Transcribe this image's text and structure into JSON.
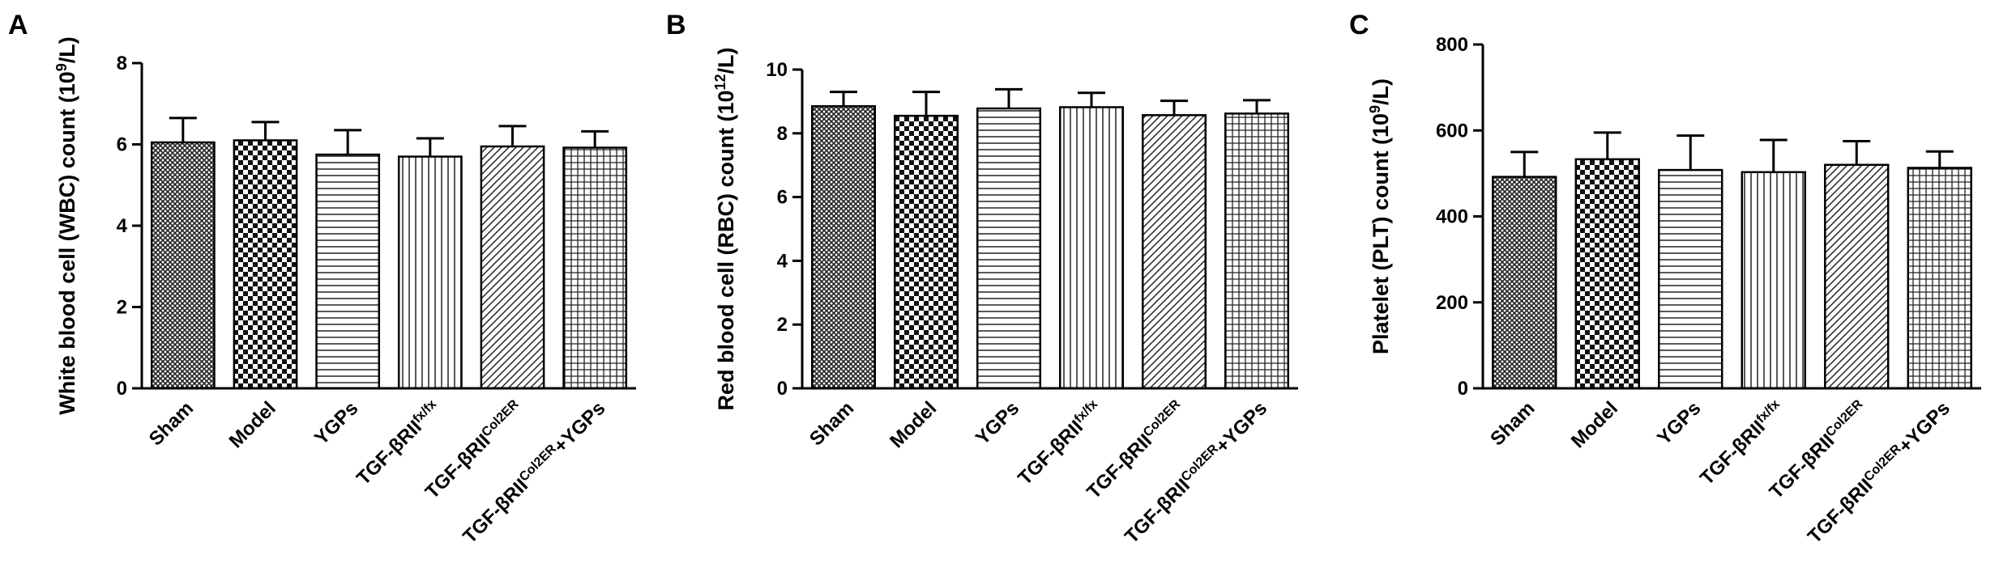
{
  "chart_data": [
    {
      "panel_label": "A",
      "type": "bar",
      "ylabel_parts": [
        "White blood cell (WBC) count (10",
        "9",
        "/L)"
      ],
      "ylim": [
        0,
        8
      ],
      "yticks": [
        0,
        2,
        4,
        6,
        8
      ],
      "categories": [
        {
          "base": "Sham",
          "sup": "",
          "suffix": ""
        },
        {
          "base": "Model",
          "sup": "",
          "suffix": ""
        },
        {
          "base": "YGPs",
          "sup": "",
          "suffix": ""
        },
        {
          "base": "TGF-βRII",
          "sup": "fx/fx",
          "suffix": ""
        },
        {
          "base": "TGF-βRII",
          "sup": "Col2ER",
          "suffix": ""
        },
        {
          "base": "TGF-βRII",
          "sup": "Col2ER",
          "suffix": "+YGPs"
        }
      ],
      "values": [
        6.05,
        6.1,
        5.75,
        5.7,
        5.95,
        5.92
      ],
      "errors": [
        0.6,
        0.45,
        0.6,
        0.45,
        0.5,
        0.4
      ],
      "patterns": [
        "crosshatch",
        "checker",
        "hlines",
        "vlines",
        "diag",
        "grid"
      ],
      "grid": false,
      "legend": "none"
    },
    {
      "panel_label": "B",
      "type": "bar",
      "ylabel_parts": [
        "Red blood cell (RBC) count (10",
        "12",
        "/L)"
      ],
      "ylim": [
        0,
        10
      ],
      "yticks": [
        0,
        2,
        4,
        6,
        8,
        10
      ],
      "categories": [
        {
          "base": "Sham",
          "sup": "",
          "suffix": ""
        },
        {
          "base": "Model",
          "sup": "",
          "suffix": ""
        },
        {
          "base": "YGPs",
          "sup": "",
          "suffix": ""
        },
        {
          "base": "TGF-βRII",
          "sup": "fx/fx",
          "suffix": ""
        },
        {
          "base": "TGF-βRII",
          "sup": "Col2ER",
          "suffix": ""
        },
        {
          "base": "TGF-βRII",
          "sup": "Col2ER",
          "suffix": "+YGPs"
        }
      ],
      "values": [
        8.85,
        8.55,
        8.78,
        8.82,
        8.57,
        8.62
      ],
      "errors": [
        0.45,
        0.75,
        0.6,
        0.45,
        0.45,
        0.42
      ],
      "patterns": [
        "crosshatch",
        "checker",
        "hlines",
        "vlines",
        "diag",
        "grid"
      ],
      "grid": false,
      "legend": "none"
    },
    {
      "panel_label": "C",
      "type": "bar",
      "ylabel_parts": [
        "Platelet (PLT) count (10",
        "9",
        "/L)"
      ],
      "ylim": [
        0,
        800
      ],
      "yticks": [
        0,
        200,
        400,
        600,
        800
      ],
      "categories": [
        {
          "base": "Sham",
          "sup": "",
          "suffix": ""
        },
        {
          "base": "Model",
          "sup": "",
          "suffix": ""
        },
        {
          "base": "YGPs",
          "sup": "",
          "suffix": ""
        },
        {
          "base": "TGF-βRII",
          "sup": "fx/fx",
          "suffix": ""
        },
        {
          "base": "TGF-βRII",
          "sup": "Col2ER",
          "suffix": ""
        },
        {
          "base": "TGF-βRII",
          "sup": "Col2ER",
          "suffix": "+YGPs"
        }
      ],
      "values": [
        492,
        533,
        508,
        503,
        520,
        513
      ],
      "errors": [
        58,
        62,
        80,
        75,
        55,
        38
      ],
      "patterns": [
        "crosshatch",
        "checker",
        "hlines",
        "vlines",
        "diag",
        "grid"
      ],
      "grid": false,
      "legend": "none"
    }
  ]
}
